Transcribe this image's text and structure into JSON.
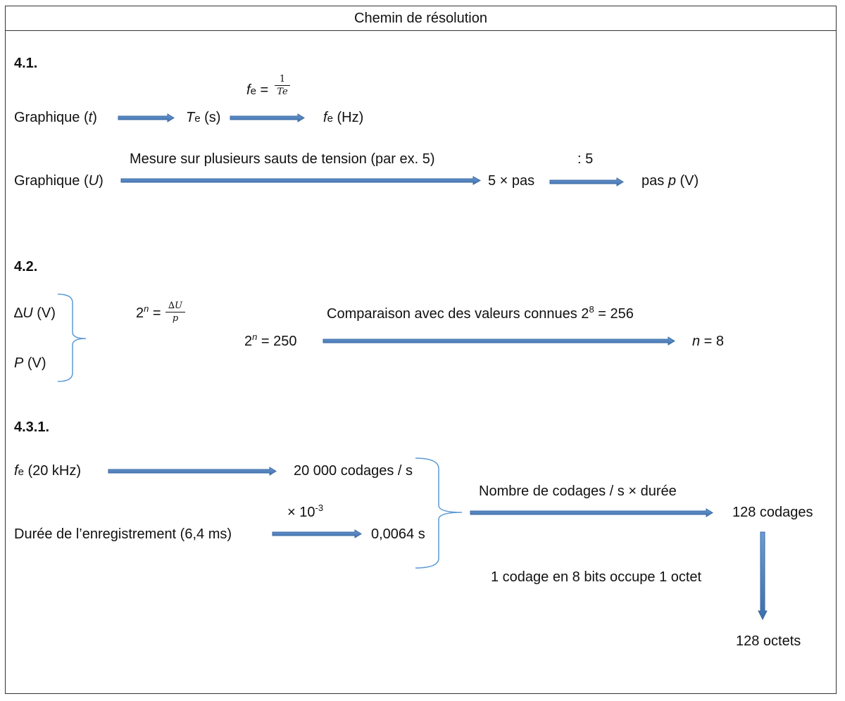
{
  "header": {
    "title": "Chemin de résolution"
  },
  "s41": {
    "heading": "4.1.",
    "row1": {
      "graph_label": "Graphique (",
      "graph_var": "t",
      "graph_close": ")",
      "te_var": "T",
      "te_sub": "e",
      "te_unit": " (s)",
      "fe_var": "f",
      "fe_sub": "e",
      "fe_unit": " (Hz)",
      "formula_lhs_var": "f",
      "formula_lhs_sub": "e",
      "formula_eq": " =",
      "formula_num": "1",
      "formula_den": "Te"
    },
    "row2": {
      "graph_label": "Graphique (",
      "graph_var": "U",
      "graph_close": ")",
      "arrow_label": "Mesure sur plusieurs sauts de tension (par ex. 5)",
      "mid": "5 × pas",
      "divide_label": ": 5",
      "result_pre": "pas ",
      "result_var": "p",
      "result_unit": " (V)"
    }
  },
  "s42": {
    "heading": "4.2.",
    "du_sym": "∆",
    "du_var": "U",
    "du_unit": " (V)",
    "p_var": "P",
    "p_unit": " (V)",
    "formula_base": "2",
    "formula_exp": "n",
    "formula_eq": " =",
    "formula_num": "∆U",
    "formula_den": "p",
    "eq_base": "2",
    "eq_exp": "n",
    "eq_rest": " = 250",
    "arrow_label": "Comparaison avec des valeurs connues 2",
    "arrow_label_exp": "8",
    "arrow_label_rest": " = 256",
    "result_var": "n",
    "result_rest": " = 8"
  },
  "s431": {
    "heading": "4.3.1.",
    "fe_var": "f",
    "fe_sub": "e",
    "fe_rest": " (20 kHz)",
    "fe_result": "20 000 codages / s",
    "duration_label": "Durée de l’enregistrement (6,4 ms)",
    "mult_label": "× 10",
    "mult_exp": "-3",
    "duration_result": "0,0064 s",
    "combine_label": "Nombre de codages / s  × durée",
    "codages": "128  codages",
    "octet_note": "1 codage en 8 bits occupe 1 octet",
    "octets": "128 octets"
  },
  "colors": {
    "arrow": "#4a7ebb",
    "arrow_stroke": "#3a6aa3",
    "brace": "#5b9bd5",
    "border": "#333333"
  }
}
